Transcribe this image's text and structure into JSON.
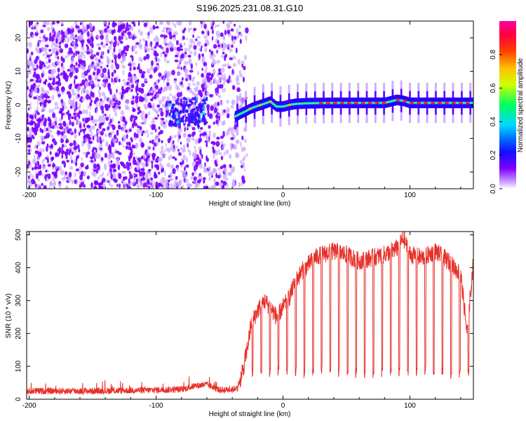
{
  "title": "S196.2025.231.08.31.G10",
  "colors": {
    "signal_strong": "#7a00ff",
    "signal_light": "#c9a6ff",
    "snr_line": "#e8302a",
    "frame": "#000000"
  },
  "colorbar": {
    "label": "Normalized spectral amplitude",
    "ticks": [
      "0.0",
      "0.2",
      "0.4",
      "0.6",
      "0.8"
    ],
    "tick_values": [
      0.0,
      0.2,
      0.4,
      0.6,
      0.8
    ],
    "range": [
      0,
      1
    ]
  },
  "chart_data": [
    {
      "type": "heatmap",
      "title": "S196.2025.231.08.31.G10",
      "xlabel": "Height of straight line (km)",
      "ylabel": "Frequency (Hz)",
      "xlim": [
        -202,
        150
      ],
      "ylim": [
        -25,
        25
      ],
      "xticks": [
        -200,
        -100,
        0,
        100
      ],
      "xtick_labels": [
        "-200",
        "-100",
        "0",
        "100"
      ],
      "yticks": [
        -20,
        -10,
        0,
        10,
        20
      ],
      "ytick_labels": [
        "-20",
        "-10",
        "0",
        "10",
        "20"
      ],
      "noise_region_x": [
        -202,
        -28
      ],
      "signal_track": {
        "x": [
          -38,
          -30,
          -25,
          -20,
          -15,
          -10,
          -5,
          0,
          5,
          10,
          20,
          40,
          60,
          80,
          90,
          95,
          100,
          120,
          150
        ],
        "y": [
          -3.5,
          -2.0,
          -1.0,
          -0.3,
          0.3,
          1.0,
          -0.5,
          -0.5,
          0,
          0.3,
          0.5,
          0.6,
          0.6,
          0.6,
          1.5,
          1.2,
          0.6,
          0.6,
          0.6
        ]
      },
      "secondary_cluster": {
        "x_range": [
          -90,
          -60
        ],
        "y": -2
      }
    },
    {
      "type": "line",
      "xlabel": "Height of straight line (km)",
      "ylabel": "SNR (10 * v/v)",
      "xlim": [
        -202,
        150
      ],
      "ylim": [
        0,
        510
      ],
      "xticks": [
        -200,
        -100,
        0,
        100
      ],
      "xtick_labels": [
        "-200",
        "-100",
        "0",
        "100"
      ],
      "yticks": [
        0,
        100,
        200,
        300,
        400,
        500
      ],
      "ytick_labels": [
        "0",
        "100",
        "200",
        "300",
        "400",
        "500"
      ],
      "series": [
        {
          "name": "SNR",
          "x": [
            -202,
            -150,
            -100,
            -80,
            -70,
            -60,
            -50,
            -40,
            -36,
            -32,
            -28,
            -25,
            -20,
            -15,
            -10,
            -5,
            0,
            5,
            10,
            15,
            20,
            25,
            30,
            40,
            50,
            60,
            70,
            80,
            90,
            95,
            100,
            110,
            120,
            130,
            140,
            145,
            150
          ],
          "values": [
            25,
            25,
            28,
            30,
            40,
            45,
            28,
            30,
            35,
            80,
            160,
            230,
            270,
            300,
            280,
            250,
            280,
            310,
            360,
            390,
            410,
            430,
            440,
            450,
            440,
            420,
            430,
            440,
            460,
            490,
            440,
            430,
            450,
            420,
            380,
            200,
            420
          ],
          "dropout_start_x": -38,
          "dropout_spacing_x": 6.8,
          "dropout_floor": 60
        }
      ]
    }
  ]
}
